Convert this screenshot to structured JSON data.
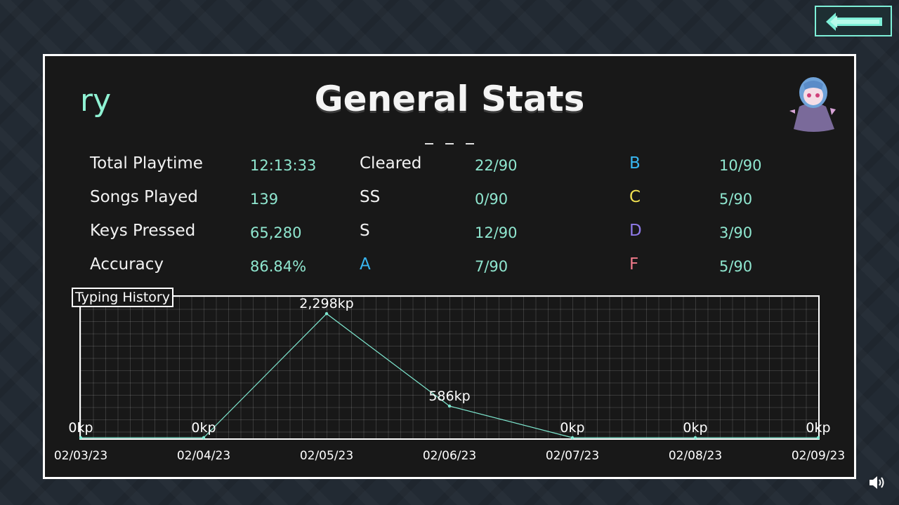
{
  "header": {
    "username": "ry",
    "title": "General Stats"
  },
  "stats": {
    "total_playtime": {
      "label": "Total Playtime",
      "value": "12:13:33"
    },
    "songs_played": {
      "label": "Songs Played",
      "value": "139"
    },
    "keys_pressed": {
      "label": "Keys Pressed",
      "value": "65,280"
    },
    "accuracy": {
      "label": "Accuracy",
      "value": "86.84%"
    }
  },
  "grades": {
    "cleared": {
      "label": "Cleared",
      "value": "22/90",
      "color": "#f2f2f2"
    },
    "ss": {
      "label": "SS",
      "value": "0/90",
      "color": "#f2f2f2"
    },
    "s": {
      "label": "S",
      "value": "12/90",
      "color": "#f2f2f2"
    },
    "a": {
      "label": "A",
      "value": "7/90",
      "color": "#38b6f0"
    },
    "b": {
      "label": "B",
      "value": "10/90",
      "color": "#38b6f0"
    },
    "c": {
      "label": "C",
      "value": "5/90",
      "color": "#f0e050"
    },
    "d": {
      "label": "D",
      "value": "3/90",
      "color": "#8f7ae8"
    },
    "f": {
      "label": "F",
      "value": "5/90",
      "color": "#f07a8a"
    }
  },
  "icons": {
    "back": "left-arrow-icon",
    "sound": "speaker-icon",
    "avatar": "character-avatar"
  },
  "chart_data": {
    "type": "line",
    "title": "Typing History",
    "x": [
      "02/03/23",
      "02/04/23",
      "02/05/23",
      "02/06/23",
      "02/07/23",
      "02/08/23",
      "02/09/23"
    ],
    "values": [
      0,
      0,
      2298,
      586,
      0,
      0,
      0
    ],
    "value_labels": [
      "0kp",
      "0kp",
      "2,298kp",
      "586kp",
      "0kp",
      "0kp",
      "0kp"
    ],
    "ylim": [
      0,
      2600
    ],
    "grid": true,
    "color": "#7ee8d0"
  }
}
